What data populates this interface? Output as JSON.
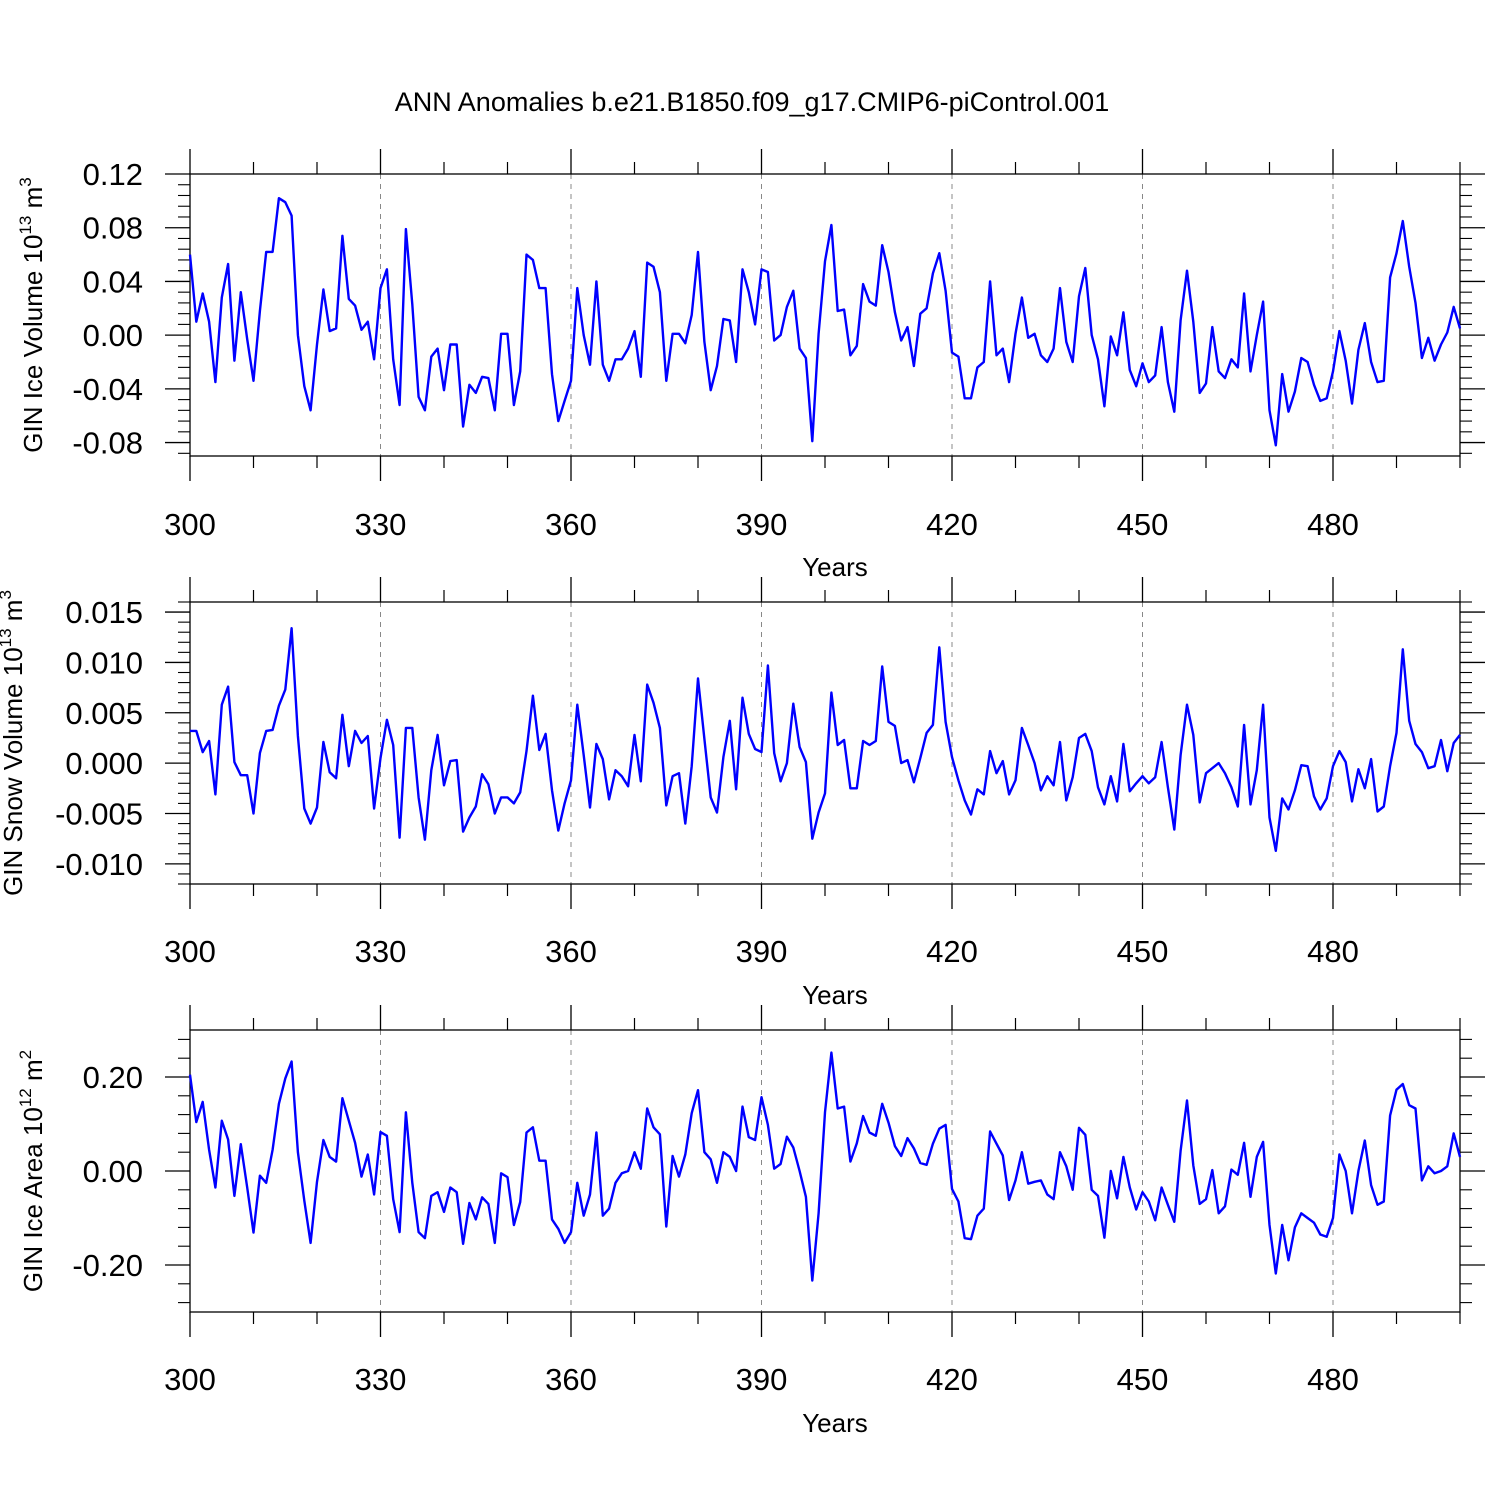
{
  "title": "ANN Anomalies b.e21.B1850.f09_g17.CMIP6-piControl.001",
  "colors": {
    "line": "#0000ff",
    "axis": "#000000",
    "grid": "#888888"
  },
  "chart_data": [
    {
      "type": "line",
      "ylabel": {
        "text": "GIN Ice Volume 10",
        "exp": "13",
        "unit": " m",
        "unit_exp": "3"
      },
      "xlabel": "Years",
      "xlim": [
        300,
        500
      ],
      "ylim": [
        -0.09,
        0.12
      ],
      "x_ticks": [
        300,
        330,
        360,
        390,
        420,
        450,
        480
      ],
      "x_tick_labels": [
        "300",
        "330",
        "360",
        "390",
        "420",
        "450",
        "480"
      ],
      "y_ticks": [
        -0.08,
        -0.04,
        0.0,
        0.04,
        0.08,
        0.12
      ],
      "y_tick_labels": [
        "-0.08",
        "-0.04",
        "0.00",
        "0.04",
        "0.08",
        "0.12"
      ],
      "grid": "vertical dashed at x ticks",
      "x_start": 300,
      "series": [
        {
          "values": [
            0.06,
            0.01,
            0.031,
            0.01,
            -0.035,
            0.028,
            0.053,
            -0.019,
            0.032,
            -0.003,
            -0.034,
            0.018,
            0.062,
            0.062,
            0.102,
            0.099,
            0.089,
            0.0,
            -0.038,
            -0.056,
            -0.007,
            0.034,
            0.003,
            0.005,
            0.074,
            0.027,
            0.022,
            0.004,
            0.01,
            -0.018,
            0.035,
            0.049,
            -0.018,
            -0.052,
            0.079,
            0.023,
            -0.046,
            -0.056,
            -0.016,
            -0.01,
            -0.041,
            -0.007,
            -0.007,
            -0.068,
            -0.037,
            -0.043,
            -0.031,
            -0.032,
            -0.056,
            0.001,
            0.001,
            -0.052,
            -0.027,
            0.06,
            0.056,
            0.035,
            0.035,
            -0.029,
            -0.064,
            -0.049,
            -0.034,
            0.035,
            0.0,
            -0.022,
            0.04,
            -0.022,
            -0.034,
            -0.018,
            -0.018,
            -0.01,
            0.003,
            -0.031,
            0.054,
            0.051,
            0.032,
            -0.034,
            0.001,
            0.001,
            -0.006,
            0.015,
            0.062,
            -0.005,
            -0.041,
            -0.023,
            0.012,
            0.011,
            -0.02,
            0.049,
            0.032,
            0.008,
            0.049,
            0.047,
            -0.004,
            0.0,
            0.021,
            0.033,
            -0.01,
            -0.017,
            -0.079,
            0.001,
            0.055,
            0.082,
            0.018,
            0.019,
            -0.015,
            -0.008,
            0.038,
            0.025,
            0.022,
            0.067,
            0.047,
            0.017,
            -0.004,
            0.006,
            -0.023,
            0.016,
            0.02,
            0.046,
            0.061,
            0.033,
            -0.013,
            -0.016,
            -0.047,
            -0.047,
            -0.024,
            -0.02,
            0.04,
            -0.015,
            -0.01,
            -0.035,
            0.001,
            0.028,
            -0.002,
            0.001,
            -0.015,
            -0.02,
            -0.01,
            0.035,
            -0.005,
            -0.02,
            0.029,
            0.05,
            0.0,
            -0.018,
            -0.053,
            -0.001,
            -0.015,
            0.017,
            -0.026,
            -0.038,
            -0.021,
            -0.035,
            -0.03,
            0.006,
            -0.035,
            -0.057,
            0.011,
            0.048,
            0.01,
            -0.043,
            -0.036,
            0.006,
            -0.027,
            -0.032,
            -0.018,
            -0.024,
            0.031,
            -0.027,
            0.0,
            0.025,
            -0.056,
            -0.082,
            -0.029,
            -0.057,
            -0.042,
            -0.017,
            -0.02,
            -0.037,
            -0.049,
            -0.047,
            -0.027,
            0.003,
            -0.019,
            -0.051,
            -0.011,
            0.009,
            -0.02,
            -0.035,
            -0.034,
            0.043,
            0.061,
            0.085,
            0.051,
            0.024,
            -0.017,
            -0.002,
            -0.019,
            -0.007,
            0.002,
            0.021,
            0.005
          ]
        }
      ]
    },
    {
      "type": "line",
      "ylabel": {
        "text": "GIN Snow Volume 10",
        "exp": "13",
        "unit": " m",
        "unit_exp": "3"
      },
      "xlabel": "Years",
      "xlim": [
        300,
        500
      ],
      "ylim": [
        -0.012,
        0.016
      ],
      "x_ticks": [
        300,
        330,
        360,
        390,
        420,
        450,
        480
      ],
      "x_tick_labels": [
        "300",
        "330",
        "360",
        "390",
        "420",
        "450",
        "480"
      ],
      "y_ticks": [
        -0.01,
        -0.005,
        0.0,
        0.005,
        0.01,
        0.015
      ],
      "y_tick_labels": [
        "-0.010",
        "-0.005",
        "0.000",
        "0.005",
        "0.010",
        "0.015"
      ],
      "grid": "vertical dashed at x ticks",
      "x_start": 300,
      "series": [
        {
          "values": [
            0.0032,
            0.0032,
            0.0011,
            0.0022,
            -0.0031,
            0.0058,
            0.0076,
            0.0001,
            -0.0012,
            -0.0012,
            -0.005,
            0.001,
            0.0032,
            0.0033,
            0.0057,
            0.0073,
            0.0134,
            0.0027,
            -0.0045,
            -0.006,
            -0.0044,
            0.0021,
            -0.0009,
            -0.0015,
            0.0048,
            -0.0003,
            0.0032,
            0.002,
            0.0027,
            -0.0045,
            0.0005,
            0.0043,
            0.0018,
            -0.0074,
            0.0035,
            0.0035,
            -0.0034,
            -0.0076,
            -0.0007,
            0.0028,
            -0.0022,
            0.0002,
            0.0003,
            -0.0068,
            -0.0054,
            -0.0043,
            -0.0011,
            -0.0021,
            -0.005,
            -0.0034,
            -0.0034,
            -0.004,
            -0.0029,
            0.0012,
            0.0067,
            0.0013,
            0.0029,
            -0.0027,
            -0.0067,
            -0.004,
            -0.0017,
            0.0058,
            0.0008,
            -0.0044,
            0.0019,
            0.0004,
            -0.0036,
            -0.0007,
            -0.0013,
            -0.0023,
            0.0028,
            -0.0018,
            0.0078,
            0.006,
            0.0035,
            -0.0042,
            -0.0013,
            -0.001,
            -0.006,
            -0.0003,
            0.0084,
            0.0024,
            -0.0034,
            -0.0049,
            0.0006,
            0.0042,
            -0.0026,
            0.0065,
            0.0029,
            0.0014,
            0.0011,
            0.0097,
            0.001,
            -0.0018,
            0.0,
            0.0059,
            0.0016,
            0.0001,
            -0.0075,
            -0.0049,
            -0.003,
            0.007,
            0.0018,
            0.0023,
            -0.0025,
            -0.0025,
            0.0022,
            0.0018,
            0.0022,
            0.0096,
            0.0041,
            0.0037,
            0.0,
            0.0003,
            -0.0019,
            0.0005,
            0.003,
            0.0038,
            0.0115,
            0.0041,
            0.0006,
            -0.0017,
            -0.0037,
            -0.0051,
            -0.0026,
            -0.0031,
            0.0012,
            -0.001,
            0.0002,
            -0.0031,
            -0.0017,
            0.0035,
            0.0018,
            0.0,
            -0.0027,
            -0.0013,
            -0.0022,
            0.0021,
            -0.0037,
            -0.0014,
            0.0025,
            0.0029,
            0.0012,
            -0.0024,
            -0.0041,
            -0.0013,
            -0.0038,
            0.0019,
            -0.0028,
            -0.002,
            -0.0013,
            -0.002,
            -0.0014,
            0.0021,
            -0.0024,
            -0.0066,
            0.0008,
            0.0058,
            0.0028,
            -0.0039,
            -0.001,
            -0.0005,
            0.0,
            -0.001,
            -0.0024,
            -0.0043,
            0.0038,
            -0.0041,
            -0.0007,
            0.0058,
            -0.0054,
            -0.0087,
            -0.0035,
            -0.0046,
            -0.0027,
            -0.0002,
            -0.0003,
            -0.0033,
            -0.0046,
            -0.0035,
            -0.0003,
            0.0012,
            0.0001,
            -0.0038,
            -0.0006,
            -0.0025,
            0.0004,
            -0.0048,
            -0.0043,
            -0.0003,
            0.003,
            0.0113,
            0.0042,
            0.0019,
            0.0011,
            -0.0005,
            -0.0003,
            0.0023,
            -0.0008,
            0.002,
            0.0028
          ]
        }
      ]
    },
    {
      "type": "line",
      "ylabel": {
        "text": "GIN Ice Area 10",
        "exp": "12",
        "unit": " m",
        "unit_exp": "2"
      },
      "xlabel": "Years",
      "xlim": [
        300,
        500
      ],
      "ylim": [
        -0.3,
        0.3
      ],
      "x_ticks": [
        300,
        330,
        360,
        390,
        420,
        450,
        480
      ],
      "x_tick_labels": [
        "300",
        "330",
        "360",
        "390",
        "420",
        "450",
        "480"
      ],
      "y_ticks": [
        -0.2,
        0.0,
        0.2
      ],
      "y_tick_labels": [
        "-0.20",
        "0.00",
        "0.20"
      ],
      "grid": "vertical dashed at x ticks",
      "x_start": 300,
      "series": [
        {
          "values": [
            0.205,
            0.104,
            0.147,
            0.045,
            -0.035,
            0.107,
            0.067,
            -0.053,
            0.057,
            -0.035,
            -0.131,
            -0.01,
            -0.025,
            0.045,
            0.143,
            0.197,
            0.233,
            0.04,
            -0.063,
            -0.153,
            -0.023,
            0.066,
            0.03,
            0.02,
            0.155,
            0.107,
            0.06,
            -0.012,
            0.035,
            -0.05,
            0.083,
            0.075,
            -0.06,
            -0.13,
            0.125,
            -0.025,
            -0.13,
            -0.143,
            -0.053,
            -0.045,
            -0.087,
            -0.035,
            -0.045,
            -0.155,
            -0.068,
            -0.103,
            -0.056,
            -0.07,
            -0.153,
            -0.005,
            -0.013,
            -0.115,
            -0.066,
            0.082,
            0.093,
            0.022,
            0.022,
            -0.103,
            -0.123,
            -0.153,
            -0.13,
            -0.025,
            -0.095,
            -0.05,
            0.082,
            -0.095,
            -0.08,
            -0.025,
            -0.005,
            0.0,
            0.04,
            0.005,
            0.133,
            0.093,
            0.078,
            -0.118,
            0.032,
            -0.012,
            0.035,
            0.123,
            0.172,
            0.04,
            0.025,
            -0.025,
            0.04,
            0.03,
            0.0,
            0.137,
            0.072,
            0.066,
            0.157,
            0.098,
            0.005,
            0.015,
            0.073,
            0.05,
            0.0,
            -0.055,
            -0.233,
            -0.09,
            0.125,
            0.252,
            0.133,
            0.137,
            0.02,
            0.059,
            0.117,
            0.082,
            0.075,
            0.143,
            0.103,
            0.053,
            0.032,
            0.07,
            0.048,
            0.017,
            0.013,
            0.058,
            0.09,
            0.098,
            -0.038,
            -0.065,
            -0.143,
            -0.145,
            -0.095,
            -0.08,
            0.084,
            0.058,
            0.033,
            -0.062,
            -0.02,
            0.04,
            -0.027,
            -0.023,
            -0.02,
            -0.05,
            -0.06,
            0.04,
            0.01,
            -0.04,
            0.092,
            0.077,
            -0.04,
            -0.053,
            -0.142,
            0.0,
            -0.058,
            0.03,
            -0.035,
            -0.082,
            -0.045,
            -0.065,
            -0.105,
            -0.035,
            -0.072,
            -0.108,
            0.043,
            0.15,
            0.012,
            -0.07,
            -0.06,
            0.002,
            -0.09,
            -0.075,
            0.003,
            -0.008,
            0.06,
            -0.055,
            0.03,
            0.062,
            -0.115,
            -0.218,
            -0.115,
            -0.19,
            -0.12,
            -0.09,
            -0.1,
            -0.11,
            -0.135,
            -0.14,
            -0.1,
            0.035,
            0.0,
            -0.09,
            0.0,
            0.065,
            -0.03,
            -0.072,
            -0.065,
            0.118,
            0.173,
            0.185,
            0.14,
            0.133,
            -0.02,
            0.01,
            -0.005,
            0.0,
            0.01,
            0.08,
            0.03
          ]
        }
      ]
    }
  ]
}
